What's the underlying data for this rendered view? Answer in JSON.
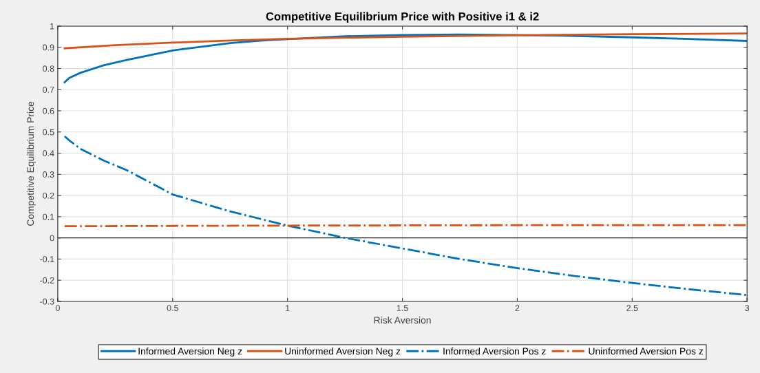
{
  "chart_data": {
    "type": "line",
    "title": "Competitive Equilibrium Price with Positive i1 & i2",
    "xlabel": "Risk Aversion",
    "ylabel": "Competitive Equilibrium Price",
    "xlim": [
      0,
      3
    ],
    "xticks": [
      0,
      0.5,
      1,
      1.5,
      2,
      2.5,
      3
    ],
    "ylim": [
      -0.3,
      1
    ],
    "yticks": [
      -0.3,
      -0.2,
      -0.1,
      0,
      0.1,
      0.2,
      0.3,
      0.4,
      0.5,
      0.6,
      0.7,
      0.8,
      0.9,
      1
    ],
    "grid": true,
    "legend": "bottom",
    "marker": "none",
    "ref_lines": [
      {
        "axis": "y",
        "value": 0,
        "color": "#262626",
        "line_style": "solid"
      }
    ],
    "series": [
      {
        "name": "Informed Aversion Neg z",
        "color": "#0072bd",
        "line_style": "solid",
        "x": [
          0.03,
          0.05,
          0.1,
          0.2,
          0.3,
          0.5,
          0.75,
          0.9,
          1.25,
          1.5,
          1.75,
          2.2,
          2.5,
          2.75,
          3
        ],
        "values": [
          0.735,
          0.755,
          0.78,
          0.815,
          0.84,
          0.885,
          0.92,
          0.933,
          0.952,
          0.958,
          0.96,
          0.955,
          0.947,
          0.939,
          0.93
        ]
      },
      {
        "name": "Uninformed Aversion Neg z",
        "color": "#d95319",
        "line_style": "solid",
        "x": [
          0.03,
          0.25,
          0.5,
          0.75,
          1,
          1.5,
          2,
          2.5,
          3
        ],
        "values": [
          0.895,
          0.91,
          0.922,
          0.932,
          0.94,
          0.95,
          0.957,
          0.962,
          0.965
        ]
      },
      {
        "name": "Informed Aversion Pos z",
        "color": "#0072bd",
        "line_style": "dashdot",
        "x": [
          0.03,
          0.05,
          0.1,
          0.2,
          0.3,
          0.5,
          0.75,
          1,
          1.25,
          1.5,
          1.75,
          2,
          2.25,
          2.5,
          2.75,
          3
        ],
        "values": [
          0.48,
          0.46,
          0.42,
          0.365,
          0.32,
          0.205,
          0.125,
          0.058,
          0.0,
          -0.05,
          -0.1,
          -0.143,
          -0.18,
          -0.213,
          -0.243,
          -0.27
        ]
      },
      {
        "name": "Uninformed Aversion Pos z",
        "color": "#d95319",
        "line_style": "dashdot",
        "x": [
          0.03,
          1,
          2,
          3
        ],
        "values": [
          0.055,
          0.058,
          0.06,
          0.06
        ]
      }
    ]
  }
}
